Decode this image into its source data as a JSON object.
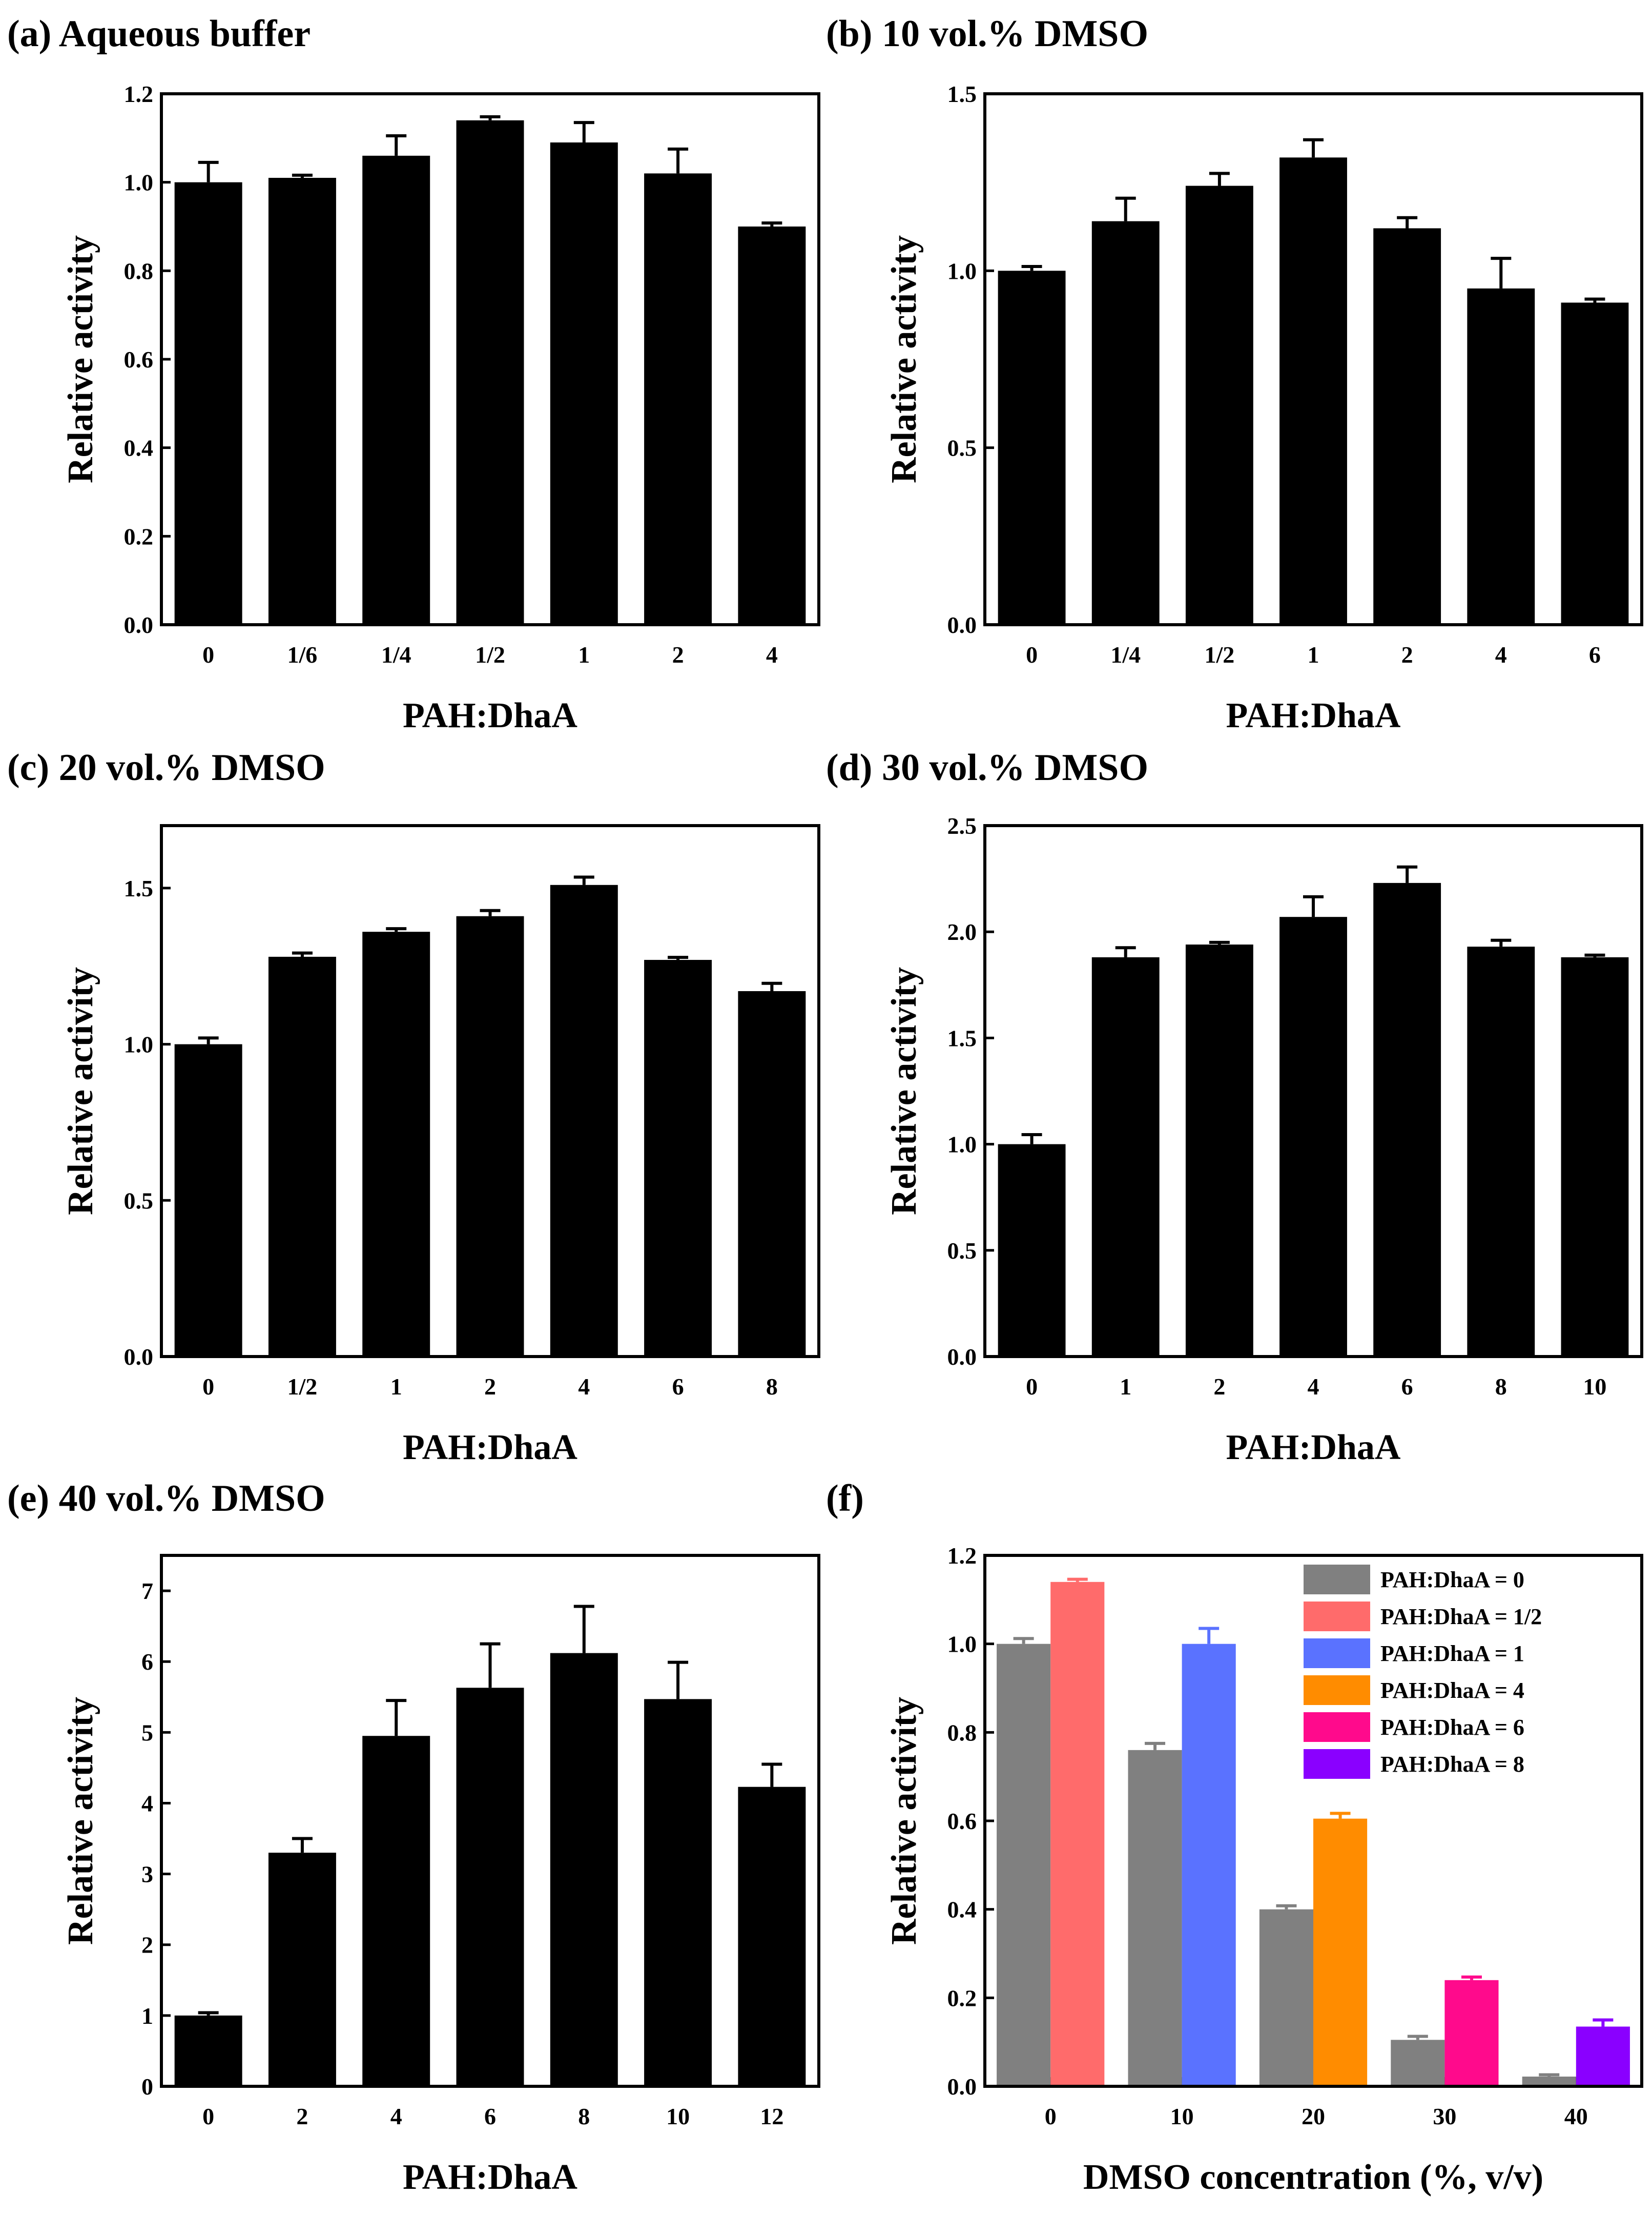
{
  "figure": {
    "panels": [
      {
        "id": "a",
        "title": "(a) Aqueous buffer",
        "chart_data": {
          "type": "bar",
          "xlabel": "PAH:DhaA",
          "ylabel": "Relative activity",
          "ylim": [
            0,
            1.2
          ],
          "yticks": [
            "0.0",
            "0.2",
            "0.4",
            "0.6",
            "0.8",
            "1.0",
            "1.2"
          ],
          "categories": [
            "0",
            "1/6",
            "1/4",
            "1/2",
            "1",
            "2",
            "4"
          ],
          "values": [
            1.0,
            1.01,
            1.06,
            1.14,
            1.09,
            1.02,
            0.9
          ],
          "errors": [
            0.045,
            0.006,
            0.045,
            0.008,
            0.045,
            0.055,
            0.008
          ],
          "color": "#000000"
        }
      },
      {
        "id": "b",
        "title": "(b) 10 vol.% DMSO",
        "chart_data": {
          "type": "bar",
          "xlabel": "PAH:DhaA",
          "ylabel": "Relative activity",
          "ylim": [
            0,
            1.5
          ],
          "yticks": [
            "0.0",
            "0.5",
            "1.0",
            "1.5"
          ],
          "categories": [
            "0",
            "1/4",
            "1/2",
            "1",
            "2",
            "4",
            "6"
          ],
          "values": [
            1.0,
            1.14,
            1.24,
            1.32,
            1.12,
            0.95,
            0.91
          ],
          "errors": [
            0.012,
            0.065,
            0.035,
            0.05,
            0.03,
            0.085,
            0.01
          ],
          "color": "#000000"
        }
      },
      {
        "id": "c",
        "title": "(c) 20 vol.% DMSO",
        "chart_data": {
          "type": "bar",
          "xlabel": "PAH:DhaA",
          "ylabel": "Relative activity",
          "ylim": [
            0,
            1.7
          ],
          "yticks": [
            "0.0",
            "0.5",
            "1.0",
            "1.5"
          ],
          "categories": [
            "0",
            "1/2",
            "1",
            "2",
            "4",
            "6",
            "8"
          ],
          "values": [
            1.0,
            1.28,
            1.36,
            1.41,
            1.51,
            1.27,
            1.17
          ],
          "errors": [
            0.02,
            0.012,
            0.01,
            0.018,
            0.025,
            0.008,
            0.025
          ],
          "color": "#000000"
        }
      },
      {
        "id": "d",
        "title": "(d) 30 vol.% DMSO",
        "chart_data": {
          "type": "bar",
          "xlabel": "PAH:DhaA",
          "ylabel": "Relative activity",
          "ylim": [
            0,
            2.5
          ],
          "yticks": [
            "0.0",
            "0.5",
            "1.0",
            "1.5",
            "2.0",
            "2.5"
          ],
          "categories": [
            "0",
            "1",
            "2",
            "4",
            "6",
            "8",
            "10"
          ],
          "values": [
            1.0,
            1.88,
            1.94,
            2.07,
            2.23,
            1.93,
            1.88
          ],
          "errors": [
            0.045,
            0.045,
            0.01,
            0.095,
            0.075,
            0.03,
            0.01
          ],
          "color": "#000000"
        }
      },
      {
        "id": "e",
        "title": "(e) 40 vol.% DMSO",
        "chart_data": {
          "type": "bar",
          "xlabel": "PAH:DhaA",
          "ylabel": "Relative activity",
          "ylim": [
            0,
            7.5
          ],
          "yticks": [
            "0",
            "1",
            "2",
            "3",
            "4",
            "5",
            "6",
            "7"
          ],
          "categories": [
            "0",
            "2",
            "4",
            "6",
            "8",
            "10",
            "12"
          ],
          "values": [
            1.0,
            3.3,
            4.95,
            5.63,
            6.12,
            5.47,
            4.23
          ],
          "errors": [
            0.04,
            0.2,
            0.5,
            0.62,
            0.66,
            0.52,
            0.32
          ],
          "color": "#000000"
        }
      },
      {
        "id": "f",
        "title": "(f)",
        "chart_data": {
          "type": "bar",
          "xlabel": "DMSO concentration (%, v/v)",
          "ylabel": "Relative activity",
          "ylim": [
            0,
            1.2
          ],
          "yticks": [
            "0.0",
            "0.2",
            "0.4",
            "0.6",
            "0.8",
            "1.0",
            "1.2"
          ],
          "categories": [
            "0",
            "10",
            "20",
            "30",
            "40"
          ],
          "bars": [
            {
              "category": "0",
              "series": "PAH:DhaA = 0",
              "value": 1.0,
              "error": 0.012
            },
            {
              "category": "0",
              "series": "PAH:DhaA = 1/2",
              "value": 1.14,
              "error": 0.006
            },
            {
              "category": "10",
              "series": "PAH:DhaA = 0",
              "value": 0.76,
              "error": 0.015
            },
            {
              "category": "10",
              "series": "PAH:DhaA = 1",
              "value": 1.0,
              "error": 0.035
            },
            {
              "category": "20",
              "series": "PAH:DhaA = 0",
              "value": 0.4,
              "error": 0.008
            },
            {
              "category": "20",
              "series": "PAH:DhaA = 4",
              "value": 0.605,
              "error": 0.012
            },
            {
              "category": "30",
              "series": "PAH:DhaA = 0",
              "value": 0.105,
              "error": 0.008
            },
            {
              "category": "30",
              "series": "PAH:DhaA = 6",
              "value": 0.24,
              "error": 0.007
            },
            {
              "category": "40",
              "series": "PAH:DhaA = 0",
              "value": 0.022,
              "error": 0.004
            },
            {
              "category": "40",
              "series": "PAH:DhaA = 8",
              "value": 0.135,
              "error": 0.015
            }
          ],
          "legend": {
            "position": "top-right",
            "items": [
              {
                "label": "PAH:DhaA = 0",
                "color": "#808080"
              },
              {
                "label": "PAH:DhaA = 1/2",
                "color": "#ff6b6b"
              },
              {
                "label": "PAH:DhaA = 1",
                "color": "#5a72ff"
              },
              {
                "label": "PAH:DhaA = 4",
                "color": "#ff8c00"
              },
              {
                "label": "PAH:DhaA = 6",
                "color": "#ff0a8c"
              },
              {
                "label": "PAH:DhaA = 8",
                "color": "#8a00ff"
              }
            ]
          }
        }
      }
    ]
  }
}
